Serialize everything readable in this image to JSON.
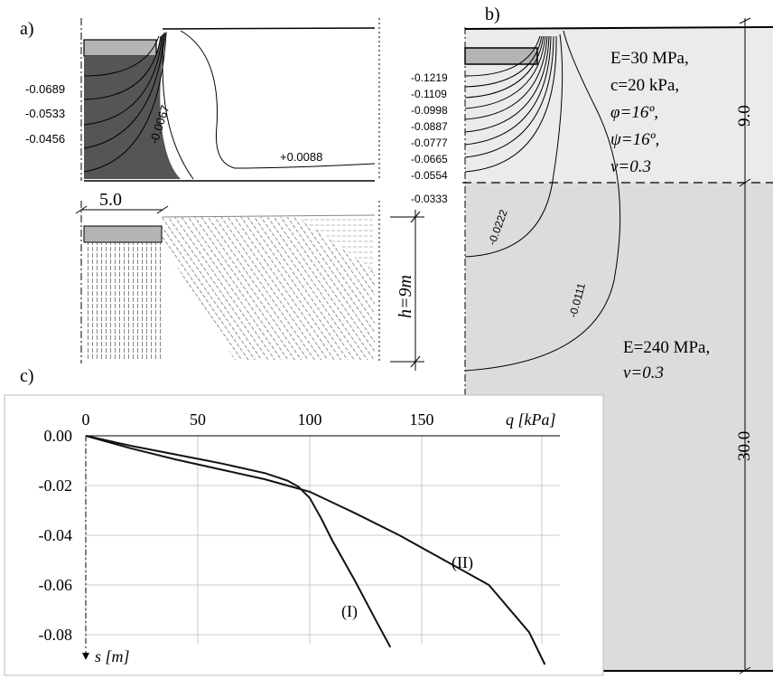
{
  "panel_a": {
    "label": "a)",
    "contour_labels": [
      "-0.0689",
      "-0.0533",
      "-0.0456",
      "-0.0067",
      "+0.0088"
    ],
    "dim_width": "5.0",
    "dim_height": "h=9m"
  },
  "panel_b": {
    "label": "b)",
    "contour_labels": [
      "-0.1219",
      "-0.1109",
      "-0.0998",
      "-0.0887",
      "-0.0777",
      "-0.0665",
      "-0.0554",
      "-0.0333",
      "-0.0222",
      "-0.0111"
    ],
    "layer1": {
      "props": [
        "E=30 MPa,",
        "c=20 kPa,",
        "φ=16º,",
        "ψ=16º,",
        "ν=0.3"
      ],
      "thickness": "9.0",
      "color": "#ebebeb"
    },
    "layer2": {
      "props": [
        "E=240 MPa,",
        "ν=0.3"
      ],
      "thickness": "30.0",
      "color": "#dcdcdc"
    }
  },
  "panel_c": {
    "label": "c)"
  },
  "chart_data": {
    "type": "line",
    "xlabel": "q [kPa]",
    "ylabel": "s [m]",
    "xlim": [
      0,
      200
    ],
    "ylim": [
      -0.09,
      0.0
    ],
    "xticks": [
      0,
      50,
      100,
      150
    ],
    "yticks": [
      0.0,
      -0.02,
      -0.04,
      -0.06,
      -0.08
    ],
    "ytick_labels": [
      "0.00",
      "-0.02",
      "-0.04",
      "-0.06",
      "-0.08"
    ],
    "grid": true,
    "series": [
      {
        "name": "(I)",
        "x": [
          0,
          20,
          40,
          60,
          80,
          90,
          95,
          100,
          105,
          110,
          120,
          130,
          136
        ],
        "y": [
          0.0,
          -0.004,
          -0.0075,
          -0.011,
          -0.015,
          -0.018,
          -0.0205,
          -0.025,
          -0.033,
          -0.042,
          -0.058,
          -0.075,
          -0.085
        ]
      },
      {
        "name": "(II)",
        "x": [
          0,
          20,
          40,
          60,
          80,
          90,
          100,
          120,
          140,
          160,
          180,
          198,
          205
        ],
        "y": [
          0.0,
          -0.005,
          -0.0095,
          -0.0135,
          -0.0175,
          -0.02,
          -0.0225,
          -0.031,
          -0.04,
          -0.05,
          -0.06,
          -0.079,
          -0.092
        ]
      }
    ]
  }
}
